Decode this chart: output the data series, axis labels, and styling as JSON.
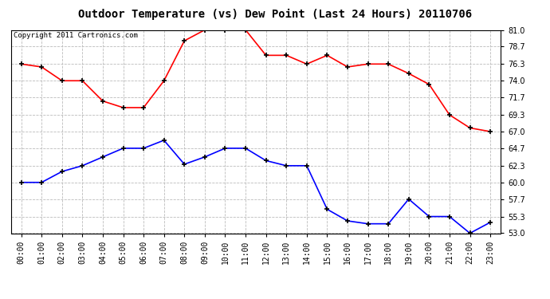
{
  "title": "Outdoor Temperature (vs) Dew Point (Last 24 Hours) 20110706",
  "copyright_text": "Copyright 2011 Cartronics.com",
  "hours": [
    "00:00",
    "01:00",
    "02:00",
    "03:00",
    "04:00",
    "05:00",
    "06:00",
    "07:00",
    "08:00",
    "09:00",
    "10:00",
    "11:00",
    "12:00",
    "13:00",
    "14:00",
    "15:00",
    "16:00",
    "17:00",
    "18:00",
    "19:00",
    "20:00",
    "21:00",
    "22:00",
    "23:00"
  ],
  "temp_red": [
    76.3,
    75.9,
    74.0,
    74.0,
    71.2,
    70.3,
    70.3,
    74.0,
    79.5,
    81.0,
    81.0,
    81.0,
    77.5,
    77.5,
    76.3,
    77.5,
    75.9,
    76.3,
    76.3,
    75.0,
    73.5,
    69.3,
    67.5,
    67.0
  ],
  "temp_blue": [
    60.0,
    60.0,
    61.5,
    62.3,
    63.5,
    64.7,
    64.7,
    65.8,
    62.5,
    63.5,
    64.7,
    64.7,
    63.0,
    62.3,
    62.3,
    56.3,
    54.7,
    54.3,
    54.3,
    57.7,
    55.3,
    55.3,
    53.0,
    54.5
  ],
  "ylim_min": 53.0,
  "ylim_max": 81.0,
  "yticks": [
    53.0,
    55.3,
    57.7,
    60.0,
    62.3,
    64.7,
    67.0,
    69.3,
    71.7,
    74.0,
    76.3,
    78.7,
    81.0
  ],
  "red_color": "#ff0000",
  "blue_color": "#0000ff",
  "bg_color": "#ffffff",
  "grid_color": "#bbbbbb",
  "title_fontsize": 10,
  "copyright_fontsize": 6.5,
  "tick_fontsize": 7
}
